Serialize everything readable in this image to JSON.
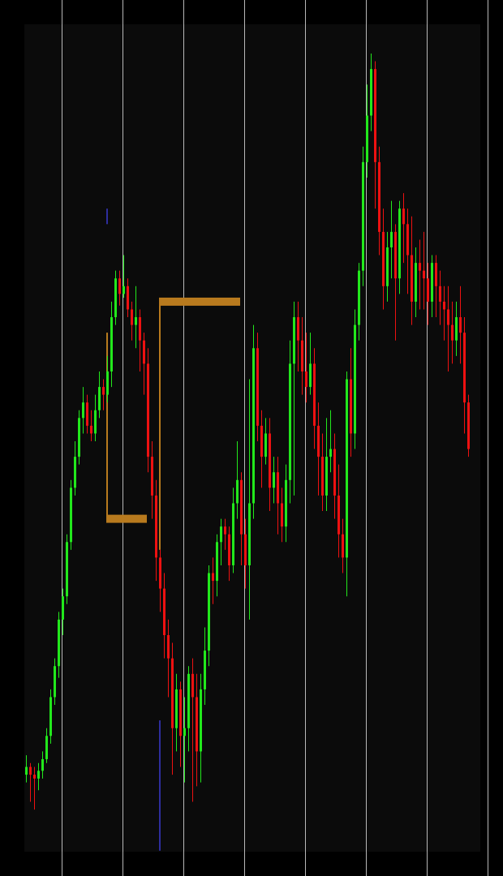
{
  "theme": {
    "background": "#000000",
    "plot_background": "#0b0b0b",
    "grid_color": "#d8d8d8",
    "bull_color": "#22e81c",
    "bear_color": "#ee1111",
    "box_color": "#b87a1e",
    "marker_color": "#3a3ad0"
  },
  "chart_data": {
    "type": "candlestick",
    "title": "",
    "xlabel": "",
    "ylabel": "",
    "grid": "vertical",
    "legend": "none",
    "ylim": [
      0,
      100
    ],
    "xlim": [
      0,
      110
    ],
    "vertical_gridlines": [
      9,
      24,
      39,
      54,
      69,
      84,
      99,
      114
    ],
    "candles": [
      [
        0,
        7,
        8,
        9.5,
        6
      ],
      [
        1,
        8,
        7,
        8.5,
        3.5
      ],
      [
        2,
        7,
        6.5,
        8,
        2.5
      ],
      [
        3,
        6.5,
        7.5,
        8.5,
        5
      ],
      [
        4,
        7.5,
        9,
        10,
        6.5
      ],
      [
        5,
        9,
        12,
        13,
        8.5
      ],
      [
        6,
        12,
        17,
        18,
        11
      ],
      [
        7,
        17,
        21,
        22,
        16
      ],
      [
        8,
        21,
        27,
        28,
        19.5
      ],
      [
        9,
        27,
        30,
        31,
        25
      ],
      [
        10,
        30,
        37,
        38,
        29
      ],
      [
        11,
        37,
        44,
        45,
        36
      ],
      [
        12,
        44,
        48,
        50,
        43
      ],
      [
        13,
        48,
        53,
        54,
        47
      ],
      [
        14,
        53,
        55,
        57,
        51
      ],
      [
        15,
        55,
        52,
        56,
        51
      ],
      [
        16,
        52,
        51,
        54,
        50
      ],
      [
        17,
        51,
        54,
        56,
        50
      ],
      [
        18,
        54,
        57,
        59,
        53
      ],
      [
        19,
        57,
        56,
        58,
        54
      ],
      [
        20,
        56,
        59,
        61,
        55
      ],
      [
        21,
        59,
        66,
        68,
        57
      ],
      [
        22,
        66,
        71,
        72,
        65
      ],
      [
        23,
        71,
        69,
        72,
        67.5
      ],
      [
        24,
        69,
        70,
        74,
        68.5
      ],
      [
        25,
        70,
        67,
        71,
        66
      ],
      [
        26,
        67,
        65,
        68,
        63
      ],
      [
        27,
        65,
        66,
        70,
        62
      ],
      [
        28,
        66,
        63,
        67,
        59
      ],
      [
        29,
        63,
        60,
        64,
        56
      ],
      [
        30,
        60,
        48,
        62,
        46
      ],
      [
        31,
        48,
        43,
        50,
        40
      ],
      [
        32,
        43,
        35,
        45,
        32
      ],
      [
        33,
        35,
        31,
        36,
        28
      ],
      [
        34,
        31,
        25,
        33,
        22
      ],
      [
        35,
        25,
        22,
        27,
        17
      ],
      [
        36,
        22,
        13,
        24,
        7
      ],
      [
        37,
        13,
        18,
        20,
        10
      ],
      [
        38,
        18,
        12,
        19,
        8
      ],
      [
        39,
        12,
        13,
        17,
        6
      ],
      [
        40,
        13,
        20,
        21,
        10
      ],
      [
        41,
        20,
        17,
        22,
        3.5
      ],
      [
        42,
        17,
        10,
        20,
        5.5
      ],
      [
        43,
        10,
        18,
        20,
        6
      ],
      [
        44,
        18,
        23,
        26,
        16
      ],
      [
        45,
        23,
        33,
        34,
        21
      ],
      [
        46,
        33,
        32,
        35,
        29
      ],
      [
        47,
        32,
        37,
        38,
        30
      ],
      [
        48,
        37,
        39,
        40,
        34
      ],
      [
        49,
        39,
        38,
        40,
        36
      ],
      [
        50,
        38,
        34,
        39,
        32
      ],
      [
        51,
        34,
        42,
        44,
        33
      ],
      [
        52,
        42,
        45,
        50,
        40
      ],
      [
        53,
        45,
        38,
        46,
        34
      ],
      [
        54,
        38,
        34,
        40,
        31
      ],
      [
        55,
        34,
        42,
        58,
        27
      ],
      [
        56,
        42,
        62,
        65,
        40
      ],
      [
        57,
        62,
        52,
        64,
        50
      ],
      [
        58,
        52,
        48,
        54,
        44
      ],
      [
        59,
        48,
        51,
        53,
        47
      ],
      [
        60,
        51,
        44,
        53,
        41
      ],
      [
        61,
        44,
        46,
        48,
        42
      ],
      [
        62,
        46,
        42,
        48,
        38
      ],
      [
        63,
        42,
        39,
        44,
        37
      ],
      [
        64,
        39,
        45,
        47,
        37
      ],
      [
        65,
        45,
        60,
        63,
        42
      ],
      [
        66,
        60,
        66,
        68,
        43
      ],
      [
        67,
        66,
        63,
        68,
        59
      ],
      [
        68,
        63,
        59,
        66,
        56
      ],
      [
        69,
        59,
        57,
        64,
        55
      ],
      [
        70,
        57,
        60,
        64,
        56
      ],
      [
        71,
        60,
        52,
        62,
        49
      ],
      [
        72,
        52,
        48,
        55,
        43
      ],
      [
        73,
        48,
        43,
        51,
        41
      ],
      [
        74,
        43,
        48,
        53,
        41
      ],
      [
        75,
        48,
        49,
        54,
        46
      ],
      [
        76,
        49,
        43,
        51,
        40
      ],
      [
        77,
        43,
        38,
        47,
        35
      ],
      [
        78,
        38,
        35,
        40,
        33
      ],
      [
        79,
        35,
        58,
        59,
        30
      ],
      [
        80,
        58,
        51,
        62,
        48
      ],
      [
        81,
        51,
        65,
        67,
        49
      ],
      [
        82,
        65,
        72,
        73,
        63
      ],
      [
        83,
        72,
        86,
        88,
        70
      ],
      [
        84,
        86,
        92,
        96,
        84
      ],
      [
        85,
        92,
        98,
        100,
        90
      ],
      [
        86,
        98,
        86,
        99,
        80
      ],
      [
        87,
        86,
        77,
        88,
        74
      ],
      [
        88,
        77,
        70,
        80,
        67
      ],
      [
        89,
        70,
        75,
        77,
        68
      ],
      [
        90,
        75,
        77,
        81,
        71
      ],
      [
        91,
        77,
        71,
        78,
        63
      ],
      [
        92,
        71,
        80,
        81,
        69
      ],
      [
        93,
        80,
        78,
        82,
        73
      ],
      [
        94,
        78,
        74,
        80,
        69
      ],
      [
        95,
        74,
        68,
        79,
        65
      ],
      [
        96,
        68,
        73,
        75,
        66
      ],
      [
        97,
        73,
        72,
        76,
        67
      ],
      [
        98,
        72,
        71,
        77,
        67
      ],
      [
        99,
        71,
        68,
        73,
        65
      ],
      [
        100,
        68,
        73,
        74,
        66
      ],
      [
        101,
        73,
        70,
        74,
        66
      ],
      [
        102,
        70,
        68,
        72,
        65
      ],
      [
        103,
        68,
        67,
        70,
        63
      ],
      [
        104,
        67,
        65,
        70,
        59
      ],
      [
        105,
        65,
        63,
        68,
        60
      ],
      [
        106,
        63,
        66,
        68,
        61
      ],
      [
        107,
        66,
        64,
        70,
        60
      ],
      [
        108,
        64,
        55,
        66,
        51
      ],
      [
        109,
        55,
        49,
        56,
        48
      ]
    ],
    "annotation_boxes": [
      {
        "x_start": 20,
        "x_end": 30,
        "y_top": 64,
        "y_bottom": 40
      },
      {
        "x_start": 33,
        "x_end": 53,
        "y_top": 68,
        "y_bottom": 36
      }
    ],
    "markers": [
      {
        "x": 20,
        "y_from": 80,
        "y_to": 78
      },
      {
        "x": 33,
        "y_from": 14,
        "y_to": -2.8
      }
    ]
  }
}
